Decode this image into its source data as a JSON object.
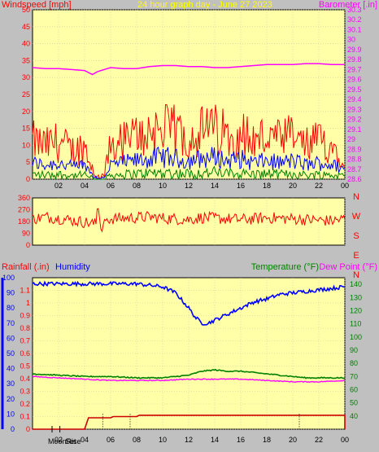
{
  "header": {
    "windspeed_label": "Windspeed [mph]",
    "graph_title": "24 hour graph day - June 27 2023",
    "barometer_label": "Barometer [.in]"
  },
  "lower_header": {
    "rainfall_label": "Rainfall (.in)",
    "humidity_label": "Humidity",
    "temperature_label": "Temperature (°F)",
    "dewpoint_label": "Dew Point (°F)"
  },
  "moon_labels": {
    "moonrise": "MoonRise",
    "moonset": "Set"
  },
  "direction_letters": [
    "N",
    "W",
    "S",
    "E",
    "N"
  ],
  "colors": {
    "plot_bg": "#ffffa8",
    "frame_bg": "#c0c0c0",
    "windspeed": "#ff0000",
    "barometer": "#ff00ff",
    "title": "#ffff00",
    "humidity": "#0000ff",
    "temperature": "#008000",
    "dewpoint": "#ff00ff",
    "rainfall": "#cc0000",
    "gust_avg": "#0000ff",
    "wind_avg": "#008000"
  },
  "chart_data": [
    {
      "type": "line",
      "title": "24 hour graph day - June 27 2023",
      "xlabel": "",
      "x_ticks": [
        "02",
        "04",
        "06",
        "08",
        "10",
        "12",
        "14",
        "16",
        "18",
        "20",
        "22",
        "00"
      ],
      "left_axis": {
        "label": "Windspeed [mph]",
        "ylim": [
          0,
          50
        ],
        "ticks": [
          0,
          5,
          10,
          15,
          20,
          25,
          30,
          35,
          40,
          45,
          50
        ]
      },
      "right_axis": {
        "label": "Barometer [.in]",
        "ylim": [
          28.6,
          30.3
        ],
        "ticks": [
          "28.6",
          "28.7",
          "28.8",
          "28.9",
          "29",
          "29.1",
          "29.2",
          "29.3",
          "29.4",
          "29.5",
          "29.6",
          "29.7",
          "29.8",
          "29.9",
          "30",
          "30.1",
          "30.2",
          "30.3"
        ]
      },
      "series": [
        {
          "name": "Windspeed [mph]",
          "axis": "left",
          "x_hours": [
            0,
            1,
            2,
            3,
            4,
            4.8,
            5.5,
            6,
            7,
            8,
            9,
            10,
            11,
            12,
            13,
            14,
            15,
            16,
            17,
            18,
            19,
            20,
            21,
            22,
            23,
            24
          ],
          "values": [
            8,
            7,
            8,
            6,
            7,
            1,
            1,
            7,
            8,
            9,
            10,
            11,
            10,
            9,
            10,
            11,
            9,
            10,
            8,
            9,
            8,
            9,
            7,
            8,
            7,
            5
          ]
        },
        {
          "name": "Barometer [.in]",
          "axis": "right",
          "x_hours": [
            0,
            1,
            2,
            3,
            4,
            4.6,
            5,
            6,
            7,
            8,
            9,
            10,
            11,
            12,
            13,
            14,
            15,
            16,
            17,
            18,
            19,
            20,
            21,
            22,
            23,
            24
          ],
          "values": [
            29.72,
            29.71,
            29.71,
            29.7,
            29.69,
            29.65,
            29.68,
            29.72,
            29.71,
            29.71,
            29.73,
            29.74,
            29.74,
            29.73,
            29.73,
            29.72,
            29.72,
            29.73,
            29.74,
            29.75,
            29.75,
            29.75,
            29.76,
            29.76,
            29.75,
            29.75
          ]
        }
      ]
    },
    {
      "type": "line",
      "title": "",
      "left_axis": {
        "label": "",
        "ylim": [
          0,
          360
        ],
        "ticks": [
          0,
          90,
          180,
          270,
          360
        ]
      },
      "right_axis": {
        "label": "",
        "letters": [
          "N",
          "W",
          "S",
          "E",
          "N"
        ]
      },
      "series": [
        {
          "name": "Wind direction",
          "x_hours": [
            0,
            1,
            2,
            3,
            4,
            4.9,
            5,
            5.3,
            5.5,
            6,
            7,
            8,
            9,
            10,
            11,
            12,
            13,
            14,
            15,
            16,
            17,
            18,
            19,
            20,
            21,
            22,
            23,
            24
          ],
          "values": [
            200,
            215,
            205,
            190,
            175,
            160,
            330,
            80,
            195,
            200,
            205,
            210,
            215,
            205,
            200,
            195,
            210,
            205,
            200,
            195,
            200,
            210,
            205,
            200,
            195,
            190,
            185,
            200
          ]
        }
      ]
    },
    {
      "type": "line",
      "title": "",
      "x_ticks": [
        "02",
        "04",
        "06",
        "08",
        "10",
        "12",
        "14",
        "16",
        "18",
        "20",
        "22",
        "00"
      ],
      "left_axis": {
        "label": "Rainfall (.in)",
        "ylim": [
          0,
          1.2
        ],
        "ticks": [
          "0",
          "0.1",
          "0.2",
          "0.3",
          "0.4",
          "0.5",
          "0.6",
          "0.7",
          "0.8",
          "0.9",
          "1",
          "1.1"
        ]
      },
      "humidity_axis": {
        "label": "Humidity",
        "ylim": [
          0,
          100
        ],
        "ticks": [
          0,
          10,
          20,
          30,
          40,
          50,
          60,
          70,
          80,
          90,
          100
        ]
      },
      "right_axis": {
        "label": "Temperature (°F)",
        "ylim": [
          30,
          145
        ],
        "ticks": [
          40,
          50,
          60,
          70,
          80,
          90,
          100,
          110,
          120,
          130,
          140
        ]
      },
      "series": [
        {
          "name": "Humidity",
          "axis": "humidity",
          "x_hours": [
            0,
            2,
            4,
            6,
            8,
            9,
            10,
            11,
            12,
            12.5,
            13,
            13.5,
            14,
            15,
            16,
            17,
            18,
            19,
            20,
            21,
            22,
            23,
            24
          ],
          "values": [
            96,
            96,
            96,
            96,
            96,
            95,
            94,
            90,
            80,
            74,
            70,
            70,
            72,
            76,
            80,
            84,
            86,
            89,
            90,
            91,
            92,
            93,
            94
          ]
        },
        {
          "name": "Temperature (°F)",
          "axis": "right",
          "x_hours": [
            0,
            2,
            4,
            6,
            8,
            10,
            11,
            12,
            13,
            14,
            15,
            16,
            17,
            18,
            19,
            20,
            21,
            22,
            23,
            24
          ],
          "values": [
            72,
            71,
            70,
            70,
            69,
            69,
            70,
            71,
            74,
            75,
            74,
            74,
            73,
            72,
            71,
            70,
            69,
            69,
            69,
            69
          ]
        },
        {
          "name": "Dew Point (°F)",
          "axis": "right",
          "x_hours": [
            0,
            2,
            4,
            6,
            8,
            10,
            12,
            14,
            16,
            18,
            20,
            22,
            24
          ],
          "values": [
            70,
            69,
            68,
            67,
            67,
            67,
            68,
            68,
            68,
            67,
            66,
            66,
            67
          ]
        },
        {
          "name": "Rainfall (.in)",
          "axis": "left",
          "x_hours": [
            0,
            3,
            4,
            4.3,
            6,
            6.2,
            8,
            8.2,
            24,
            24
          ],
          "values": [
            0,
            0,
            0,
            0.09,
            0.09,
            0.1,
            0.1,
            0.11,
            0.11,
            0.0
          ]
        }
      ],
      "markers": [
        {
          "label": "MoonRise",
          "x_hours": 1.5
        },
        {
          "label": "Set",
          "x_hours": 2.1
        }
      ]
    }
  ]
}
